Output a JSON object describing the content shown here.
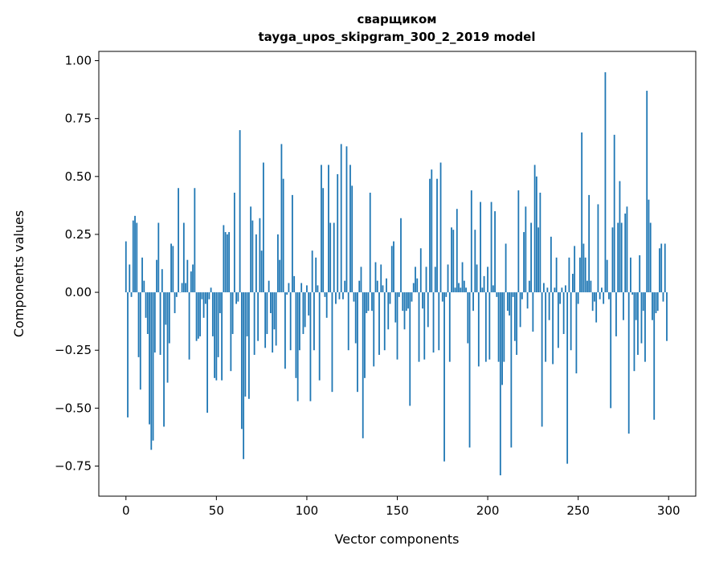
{
  "chart_data": {
    "type": "bar",
    "title": [
      "сварщиком",
      "tayga_upos_skipgram_300_2_2019 model"
    ],
    "xlabel": "Vector components",
    "ylabel": "Components values",
    "xlim": [
      -15,
      315
    ],
    "ylim": [
      -0.88,
      1.04
    ],
    "xticks": [
      0,
      50,
      100,
      150,
      200,
      250,
      300
    ],
    "xtick_labels": [
      "0",
      "50",
      "100",
      "150",
      "200",
      "250",
      "300"
    ],
    "yticks": [
      1.0,
      0.75,
      0.5,
      0.25,
      0.0,
      -0.25,
      -0.5,
      -0.75
    ],
    "ytick_labels": [
      "1.00",
      "0.75",
      "0.50",
      "0.25",
      "0.00",
      "−0.25",
      "−0.50",
      "−0.75"
    ],
    "grid": false,
    "bar_color": "#1f77b4",
    "values": [
      0.22,
      -0.54,
      0.12,
      -0.02,
      0.31,
      0.33,
      0.3,
      -0.28,
      -0.42,
      0.15,
      0.05,
      -0.11,
      -0.18,
      -0.57,
      -0.68,
      -0.64,
      -0.26,
      0.14,
      0.3,
      -0.27,
      0.1,
      -0.58,
      -0.14,
      -0.39,
      -0.22,
      0.21,
      0.2,
      -0.09,
      -0.02,
      0.45,
      0.0,
      0.04,
      0.3,
      0.04,
      0.14,
      -0.29,
      0.09,
      0.12,
      0.45,
      -0.21,
      -0.2,
      -0.19,
      -0.03,
      -0.11,
      -0.05,
      -0.52,
      -0.03,
      0.02,
      -0.19,
      -0.37,
      -0.38,
      -0.28,
      -0.09,
      -0.38,
      0.29,
      0.26,
      0.25,
      0.26,
      -0.34,
      -0.18,
      0.43,
      -0.05,
      -0.04,
      0.7,
      -0.59,
      -0.72,
      -0.45,
      -0.19,
      -0.46,
      0.37,
      0.31,
      -0.27,
      0.25,
      -0.21,
      0.32,
      0.18,
      0.56,
      -0.24,
      -0.18,
      0.05,
      -0.09,
      -0.26,
      -0.16,
      -0.23,
      0.25,
      0.14,
      0.64,
      0.49,
      -0.33,
      -0.01,
      0.04,
      -0.25,
      0.42,
      0.07,
      -0.37,
      -0.47,
      -0.25,
      0.04,
      -0.18,
      -0.15,
      0.03,
      -0.1,
      -0.47,
      0.18,
      -0.25,
      0.15,
      0.03,
      -0.38,
      0.55,
      0.45,
      -0.02,
      -0.11,
      0.55,
      0.3,
      -0.43,
      0.3,
      -0.05,
      0.51,
      -0.03,
      0.64,
      -0.03,
      0.05,
      0.63,
      -0.25,
      0.55,
      0.46,
      -0.04,
      -0.22,
      -0.43,
      0.05,
      0.11,
      -0.63,
      -0.37,
      -0.09,
      -0.08,
      0.43,
      -0.08,
      -0.32,
      0.13,
      0.05,
      -0.27,
      0.12,
      0.03,
      -0.25,
      0.06,
      -0.16,
      -0.05,
      0.2,
      0.22,
      -0.13,
      -0.29,
      -0.02,
      0.32,
      -0.08,
      -0.16,
      -0.08,
      -0.07,
      -0.49,
      -0.04,
      0.04,
      0.11,
      0.06,
      -0.3,
      0.19,
      -0.07,
      -0.29,
      0.11,
      -0.15,
      0.49,
      0.53,
      -0.26,
      0.11,
      0.49,
      -0.25,
      0.56,
      -0.04,
      -0.73,
      -0.02,
      0.12,
      -0.3,
      0.28,
      0.27,
      0.02,
      0.36,
      0.04,
      0.02,
      0.13,
      0.05,
      0.02,
      -0.22,
      -0.67,
      0.44,
      -0.08,
      0.27,
      0.12,
      -0.32,
      0.39,
      0.02,
      0.07,
      -0.3,
      0.11,
      -0.29,
      0.39,
      0.03,
      0.35,
      -0.02,
      -0.3,
      -0.79,
      -0.4,
      -0.3,
      0.21,
      -0.08,
      -0.1,
      -0.67,
      -0.02,
      -0.21,
      -0.27,
      0.44,
      -0.15,
      -0.03,
      0.26,
      0.37,
      -0.07,
      0.05,
      0.3,
      -0.17,
      0.55,
      0.5,
      0.28,
      0.43,
      -0.58,
      0.04,
      -0.3,
      0.02,
      -0.12,
      0.24,
      -0.31,
      0.02,
      0.15,
      -0.24,
      -0.05,
      0.02,
      -0.18,
      0.03,
      -0.74,
      0.15,
      -0.25,
      0.08,
      0.2,
      -0.35,
      -0.05,
      0.15,
      0.69,
      0.21,
      0.15,
      0.05,
      0.42,
      0.05,
      -0.08,
      -0.04,
      -0.13,
      0.38,
      -0.03,
      0.02,
      -0.05,
      0.95,
      0.14,
      -0.03,
      -0.5,
      0.28,
      0.68,
      -0.19,
      0.3,
      0.48,
      0.3,
      -0.12,
      0.34,
      0.37,
      -0.61,
      0.15,
      -0.01,
      -0.34,
      -0.12,
      -0.27,
      0.16,
      -0.22,
      -0.08,
      -0.3,
      0.87,
      0.4,
      0.3,
      -0.12,
      -0.55,
      -0.09,
      -0.08,
      0.19,
      0.21,
      -0.04,
      0.21,
      -0.21
    ]
  }
}
